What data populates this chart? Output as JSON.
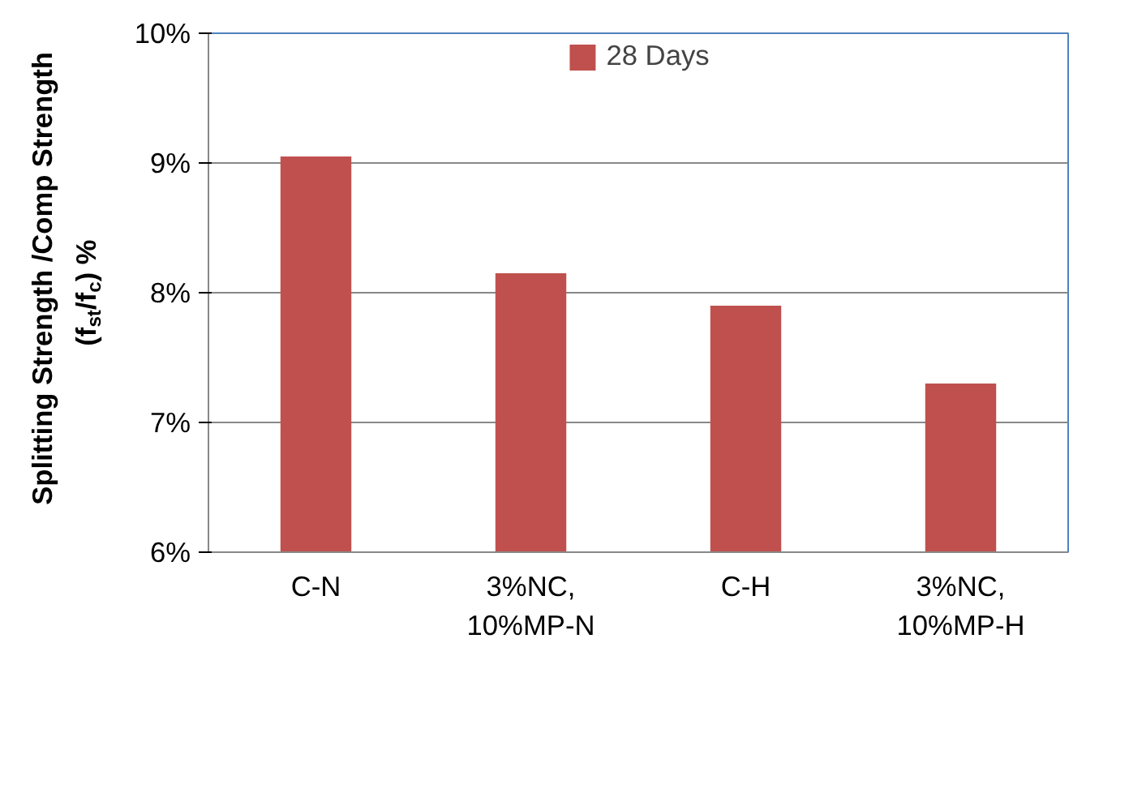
{
  "chart_data": {
    "type": "bar",
    "ylabel": "Splitting Strength /Comp Strength\n(f$_{st}$/f$_{c}$) %",
    "categories": [
      "C-N",
      "3%NC,\n10%MP-N",
      "C-H",
      "3%NC,\n10%MP-H"
    ],
    "series": [
      {
        "name": "28 Days",
        "color": "#c0504d",
        "values": [
          9.05,
          8.15,
          7.9,
          7.3
        ]
      }
    ],
    "ylim": [
      6,
      10
    ],
    "yticks": [
      {
        "value": 6,
        "label": "6%"
      },
      {
        "value": 7,
        "label": "7%"
      },
      {
        "value": 8,
        "label": "8%"
      },
      {
        "value": 9,
        "label": "9%"
      },
      {
        "value": 10,
        "label": "10%"
      }
    ],
    "grid": "y",
    "legend": "top"
  }
}
